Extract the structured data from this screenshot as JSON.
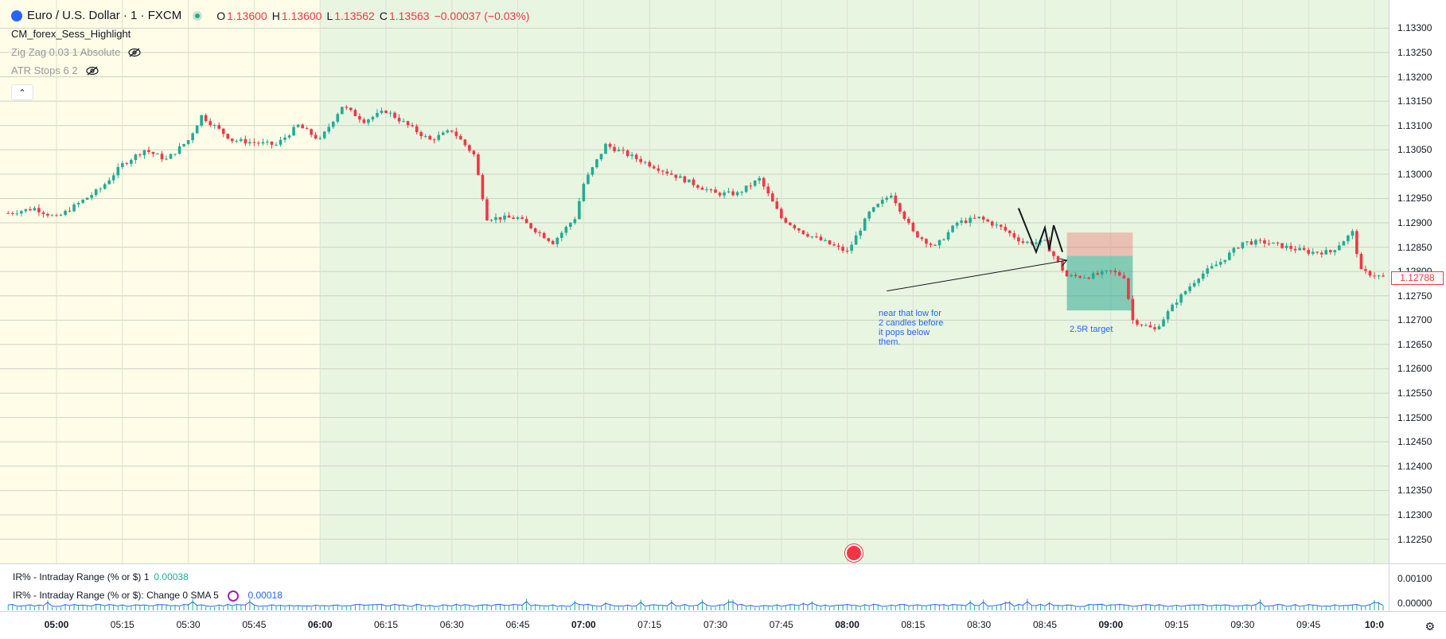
{
  "header": {
    "symbol": "Euro / U.S. Dollar · 1 · FXCM",
    "ohlc": [
      {
        "label": "O",
        "value": "1.13600"
      },
      {
        "label": "H",
        "value": "1.13600"
      },
      {
        "label": "L",
        "value": "1.13562"
      },
      {
        "label": "C",
        "value": "1.13563"
      }
    ],
    "change": "−0.00037 (−0.03%)"
  },
  "indicators": [
    {
      "name": "CM_forex_Sess_Highlight",
      "muted": false
    },
    {
      "name": "Zig Zag 0.03 1 Absolute",
      "muted": true,
      "icon": "eye-hidden-icon"
    },
    {
      "name": "ATR Stops 6 2",
      "muted": true,
      "icon": "eye-hidden-icon"
    }
  ],
  "price_axis": {
    "labels": [
      "1.13300",
      "1.13250",
      "1.13200",
      "1.13150",
      "1.13100",
      "1.13050",
      "1.13000",
      "1.12950",
      "1.12900",
      "1.12850",
      "1.12800",
      "1.12750",
      "1.12700",
      "1.12650",
      "1.12600",
      "1.12550",
      "1.12500",
      "1.12450",
      "1.12400",
      "1.12350",
      "1.12300",
      "1.12250"
    ],
    "current_price": "1.12788"
  },
  "time_axis": {
    "labels": [
      {
        "text": "05:00",
        "bold": true
      },
      {
        "text": "05:15",
        "bold": false
      },
      {
        "text": "05:30",
        "bold": false
      },
      {
        "text": "05:45",
        "bold": false
      },
      {
        "text": "06:00",
        "bold": true
      },
      {
        "text": "06:15",
        "bold": false
      },
      {
        "text": "06:30",
        "bold": false
      },
      {
        "text": "06:45",
        "bold": false
      },
      {
        "text": "07:00",
        "bold": true
      },
      {
        "text": "07:15",
        "bold": false
      },
      {
        "text": "07:30",
        "bold": false
      },
      {
        "text": "07:45",
        "bold": false
      },
      {
        "text": "08:00",
        "bold": true
      },
      {
        "text": "08:15",
        "bold": false
      },
      {
        "text": "08:30",
        "bold": false
      },
      {
        "text": "08:45",
        "bold": false
      },
      {
        "text": "09:00",
        "bold": true
      },
      {
        "text": "09:15",
        "bold": false
      },
      {
        "text": "09:30",
        "bold": false
      },
      {
        "text": "09:45",
        "bold": false
      },
      {
        "text": "10:0",
        "bold": true
      }
    ]
  },
  "annotations": {
    "note": "near that low for\n2 candles before\nit pops below\nthem.",
    "target": "2.5R target"
  },
  "indicator_pane": {
    "line1_name": "IR% - Intraday Range (% or $) 1",
    "line1_value": "0.00038",
    "line2_name": "IR% - Intraday Range (% or $): Change 0 SMA 5",
    "line2_value": "0.00018",
    "axis_top": "0.00100",
    "axis_bottom": "0.00000"
  },
  "colors": {
    "up": "#22ab94",
    "down": "#f23645",
    "session_asia": "#fffde7",
    "session_london": "#e8f5e0",
    "sma_line": "#2962ff",
    "annotation": "#2962ff"
  },
  "chart_data": {
    "type": "candlestick",
    "price_range": [
      1.1221,
      1.13335
    ],
    "close_series": [
      {
        "t": "04:49",
        "c": 1.1292
      },
      {
        "t": "04:55",
        "c": 1.1293
      },
      {
        "t": "05:00",
        "c": 1.1291
      },
      {
        "t": "05:05",
        "c": 1.1294
      },
      {
        "t": "05:10",
        "c": 1.1297
      },
      {
        "t": "05:15",
        "c": 1.1302
      },
      {
        "t": "05:20",
        "c": 1.1305
      },
      {
        "t": "05:25",
        "c": 1.1303
      },
      {
        "t": "05:30",
        "c": 1.1307
      },
      {
        "t": "05:33",
        "c": 1.1312
      },
      {
        "t": "05:40",
        "c": 1.1307
      },
      {
        "t": "05:50",
        "c": 1.1306
      },
      {
        "t": "05:55",
        "c": 1.131
      },
      {
        "t": "06:00",
        "c": 1.1307
      },
      {
        "t": "06:05",
        "c": 1.1314
      },
      {
        "t": "06:10",
        "c": 1.1311
      },
      {
        "t": "06:15",
        "c": 1.1313
      },
      {
        "t": "06:20",
        "c": 1.131
      },
      {
        "t": "06:25",
        "c": 1.1307
      },
      {
        "t": "06:30",
        "c": 1.1309
      },
      {
        "t": "06:35",
        "c": 1.1304
      },
      {
        "t": "06:38",
        "c": 1.1291
      },
      {
        "t": "06:45",
        "c": 1.1291
      },
      {
        "t": "06:53",
        "c": 1.1286
      },
      {
        "t": "06:58",
        "c": 1.1291
      },
      {
        "t": "07:00",
        "c": 1.1298
      },
      {
        "t": "07:05",
        "c": 1.1306
      },
      {
        "t": "07:10",
        "c": 1.1304
      },
      {
        "t": "07:15",
        "c": 1.1302
      },
      {
        "t": "07:20",
        "c": 1.13
      },
      {
        "t": "07:25",
        "c": 1.1298
      },
      {
        "t": "07:30",
        "c": 1.1296
      },
      {
        "t": "07:35",
        "c": 1.1296
      },
      {
        "t": "07:40",
        "c": 1.1299
      },
      {
        "t": "07:45",
        "c": 1.1291
      },
      {
        "t": "07:50",
        "c": 1.1288
      },
      {
        "t": "07:55",
        "c": 1.1286
      },
      {
        "t": "08:00",
        "c": 1.1284
      },
      {
        "t": "08:05",
        "c": 1.1292
      },
      {
        "t": "08:10",
        "c": 1.1296
      },
      {
        "t": "08:15",
        "c": 1.1288
      },
      {
        "t": "08:20",
        "c": 1.1285
      },
      {
        "t": "08:25",
        "c": 1.129
      },
      {
        "t": "08:30",
        "c": 1.1291
      },
      {
        "t": "08:35",
        "c": 1.1289
      },
      {
        "t": "08:40",
        "c": 1.1286
      },
      {
        "t": "08:45",
        "c": 1.1286
      },
      {
        "t": "08:50",
        "c": 1.1279
      },
      {
        "t": "08:55",
        "c": 1.1279
      },
      {
        "t": "09:00",
        "c": 1.128
      },
      {
        "t": "09:03",
        "c": 1.1279
      },
      {
        "t": "09:05",
        "c": 1.127
      },
      {
        "t": "09:10",
        "c": 1.1268
      },
      {
        "t": "09:15",
        "c": 1.1274
      },
      {
        "t": "09:20",
        "c": 1.1279
      },
      {
        "t": "09:25",
        "c": 1.1282
      },
      {
        "t": "09:30",
        "c": 1.1286
      },
      {
        "t": "09:35",
        "c": 1.1286
      },
      {
        "t": "09:40",
        "c": 1.1285
      },
      {
        "t": "09:45",
        "c": 1.1284
      },
      {
        "t": "09:50",
        "c": 1.1284
      },
      {
        "t": "09:55",
        "c": 1.1288
      },
      {
        "t": "09:57",
        "c": 1.128
      },
      {
        "t": "10:02",
        "c": 1.12788
      }
    ],
    "position": {
      "type": "short",
      "start": "08:50",
      "end": "09:05",
      "entry": 1.12832,
      "stop": 1.1288,
      "target": 1.1272
    }
  }
}
